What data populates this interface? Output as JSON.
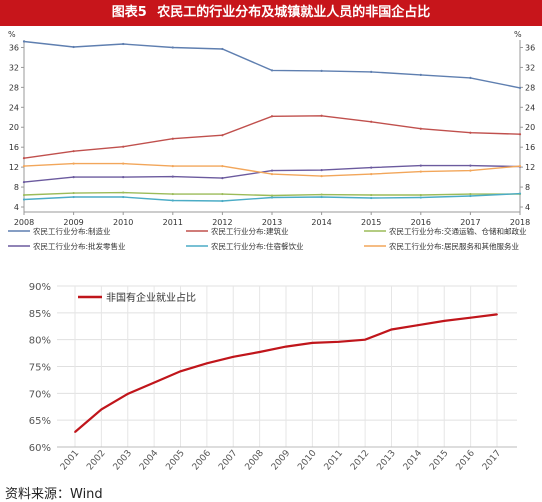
{
  "header": {
    "figure_label": "图表5",
    "title": "农民工的行业分布及城镇就业人员的非国企占比"
  },
  "source": "资料来源：Wind",
  "chart_data": [
    {
      "type": "line",
      "left_unit": "%",
      "right_unit": "%",
      "x": [
        2008,
        2009,
        2010,
        2011,
        2012,
        2013,
        2014,
        2015,
        2016,
        2017,
        2018
      ],
      "yticks": [
        4,
        8,
        12,
        16,
        20,
        24,
        28,
        32,
        36
      ],
      "ylim": [
        3,
        37.5
      ],
      "grid": false,
      "legend_position": "bottom",
      "series": [
        {
          "name": "农民工行业分布:制造业",
          "color": "#5f7fb0",
          "values": [
            37.2,
            36.1,
            36.7,
            36.0,
            35.7,
            31.4,
            31.3,
            31.1,
            30.5,
            29.9,
            27.9
          ]
        },
        {
          "name": "农民工行业分布:建筑业",
          "color": "#c0504d",
          "values": [
            13.8,
            15.2,
            16.1,
            17.7,
            18.4,
            22.2,
            22.3,
            21.1,
            19.7,
            18.9,
            18.6
          ]
        },
        {
          "name": "农民工行业分布:交通运输、仓储和邮政业",
          "color": "#9bbb59",
          "values": [
            6.4,
            6.8,
            6.9,
            6.6,
            6.6,
            6.3,
            6.5,
            6.4,
            6.4,
            6.6,
            6.6
          ]
        },
        {
          "name": "农民工行业分布:批发零售业",
          "color": "#6b5a9e",
          "values": [
            9.0,
            10.0,
            10.0,
            10.1,
            9.8,
            11.3,
            11.4,
            11.9,
            12.3,
            12.3,
            12.1
          ]
        },
        {
          "name": "农民工行业分布:住宿餐饮业",
          "color": "#4bacc6",
          "values": [
            5.5,
            6.0,
            6.0,
            5.3,
            5.2,
            5.9,
            6.0,
            5.8,
            5.9,
            6.2,
            6.7
          ]
        },
        {
          "name": "农民工行业分布:居民服务和其他服务业",
          "color": "#f2a65a",
          "values": [
            12.2,
            12.7,
            12.7,
            12.2,
            12.2,
            10.6,
            10.2,
            10.6,
            11.1,
            11.3,
            12.2
          ]
        }
      ]
    },
    {
      "type": "line",
      "x": [
        "2001",
        "2002",
        "2003",
        "2004",
        "2005",
        "2006",
        "2007",
        "2008",
        "2009",
        "2010",
        "2011",
        "2012",
        "2013",
        "2014",
        "2015",
        "2016",
        "2017"
      ],
      "yticks": [
        "60%",
        "65%",
        "70%",
        "75%",
        "80%",
        "85%",
        "90%"
      ],
      "ylim": [
        60,
        90
      ],
      "grid": true,
      "legend_position": "top-left",
      "series": [
        {
          "name": "非国有企业就业占比",
          "color": "#c0151b",
          "values": [
            62.8,
            67.0,
            69.9,
            72.0,
            74.1,
            75.6,
            76.8,
            77.7,
            78.7,
            79.4,
            79.6,
            80.0,
            81.9,
            82.7,
            83.5,
            84.1,
            84.7
          ]
        }
      ]
    }
  ]
}
